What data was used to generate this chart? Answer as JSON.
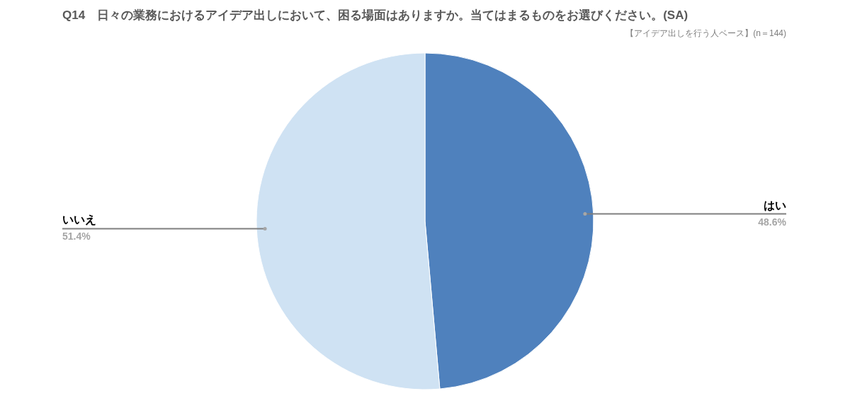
{
  "chart_data": {
    "type": "pie",
    "title": "Q14　日々の業務におけるアイデア出しにおいて、困る場面はありますか。当てはまるものをお選びください。(SA)",
    "subtitle": "【アイデア出しを行う人ベース】(n＝144)",
    "categories": [
      "はい",
      "いいえ"
    ],
    "values": [
      48.6,
      51.4
    ],
    "colors": [
      "#4f81bd",
      "#cfe2f3"
    ],
    "value_labels": [
      "48.6%",
      "51.4%"
    ]
  }
}
